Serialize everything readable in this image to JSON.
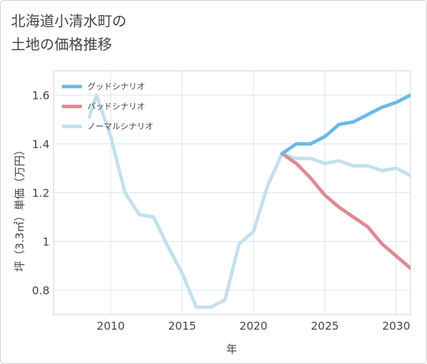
{
  "title_line1": "北海道小清水町の",
  "title_line2": "土地の価格推移",
  "chart_data": {
    "type": "line",
    "xlabel": "年",
    "ylabel": "坪（3.3㎡）単価（万円）",
    "xlim": [
      2006,
      2031
    ],
    "ylim": [
      0.7,
      1.7
    ],
    "xticks": [
      2010,
      2015,
      2020,
      2025,
      2030
    ],
    "yticks": [
      0.8,
      1,
      1.2,
      1.4,
      1.6
    ],
    "ytick_labels": [
      "0.8",
      "1",
      "1.2",
      "1.4",
      "1.6"
    ],
    "grid": true,
    "legend": "top-left",
    "series": [
      {
        "name": "グッドシナリオ",
        "color": "#6cb8ea",
        "x": [
          2022,
          2023,
          2024,
          2025,
          2026,
          2027,
          2028,
          2029,
          2030,
          2031
        ],
        "y": [
          1.36,
          1.4,
          1.4,
          1.43,
          1.48,
          1.49,
          1.52,
          1.55,
          1.57,
          1.6
        ]
      },
      {
        "name": "バッドシナリオ",
        "color": "#dd8a92",
        "x": [
          2022,
          2023,
          2024,
          2025,
          2026,
          2027,
          2028,
          2029,
          2030,
          2031
        ],
        "y": [
          1.36,
          1.32,
          1.26,
          1.19,
          1.14,
          1.1,
          1.06,
          0.99,
          0.94,
          0.89
        ]
      },
      {
        "name": "ノーマルシナリオ",
        "color": "#c3e0ed",
        "x": [
          2008.5,
          2009,
          2010,
          2011,
          2012,
          2013,
          2014,
          2015,
          2016,
          2017,
          2018,
          2019,
          2020,
          2021,
          2022,
          2023,
          2024,
          2025,
          2026,
          2027,
          2028,
          2029,
          2030,
          2031
        ],
        "y": [
          1.51,
          1.6,
          1.43,
          1.2,
          1.11,
          1.1,
          0.98,
          0.87,
          0.73,
          0.73,
          0.76,
          0.99,
          1.04,
          1.23,
          1.36,
          1.34,
          1.34,
          1.32,
          1.33,
          1.31,
          1.31,
          1.29,
          1.3,
          1.27
        ]
      }
    ]
  }
}
